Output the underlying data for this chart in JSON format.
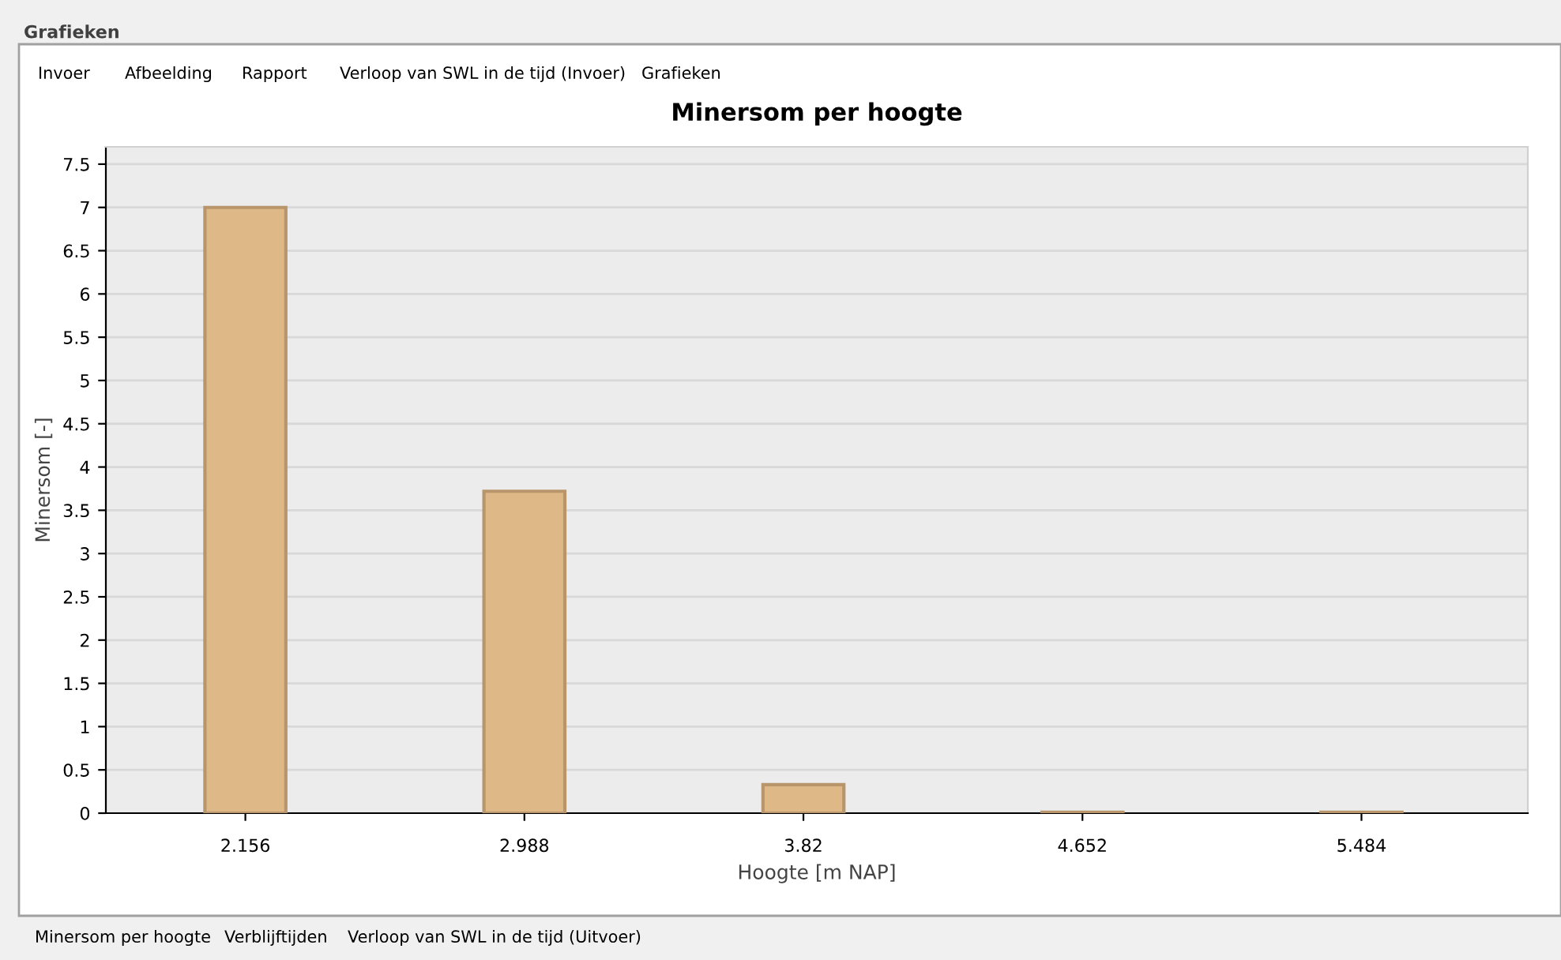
{
  "chart_data": {
    "type": "bar",
    "title": "Minersom per hoogte",
    "xlabel": "Hoogte [m NAP]",
    "ylabel": "Minersom [-]",
    "x": [
      2.156,
      2.988,
      3.82,
      4.652,
      5.484
    ],
    "values": [
      7,
      3.72,
      0.33,
      0.01,
      0.01
    ],
    "color": "#deb887",
    "xlim": [
      1.74,
      5.98
    ],
    "xticks": [
      2.156,
      2.988,
      3.82,
      4.652,
      5.484
    ],
    "ylim": [
      0,
      7.7
    ],
    "yticks": [
      0,
      0.5,
      1,
      1.5,
      2,
      2.5,
      3,
      3.5,
      4,
      4.5,
      5,
      5.5,
      6,
      6.5,
      7,
      7.5
    ],
    "grid": "y",
    "legend": false,
    "annotations": [
      "Grafieken",
      "Invoer",
      "Afbeelding",
      "Rapport",
      "Verloop van SWL in de tijd (Invoer)",
      "Grafieken",
      "Minersom per hoogte",
      "Verblijftijden",
      "Verloop van SWL in de tijd (Uitvoer)"
    ]
  }
}
